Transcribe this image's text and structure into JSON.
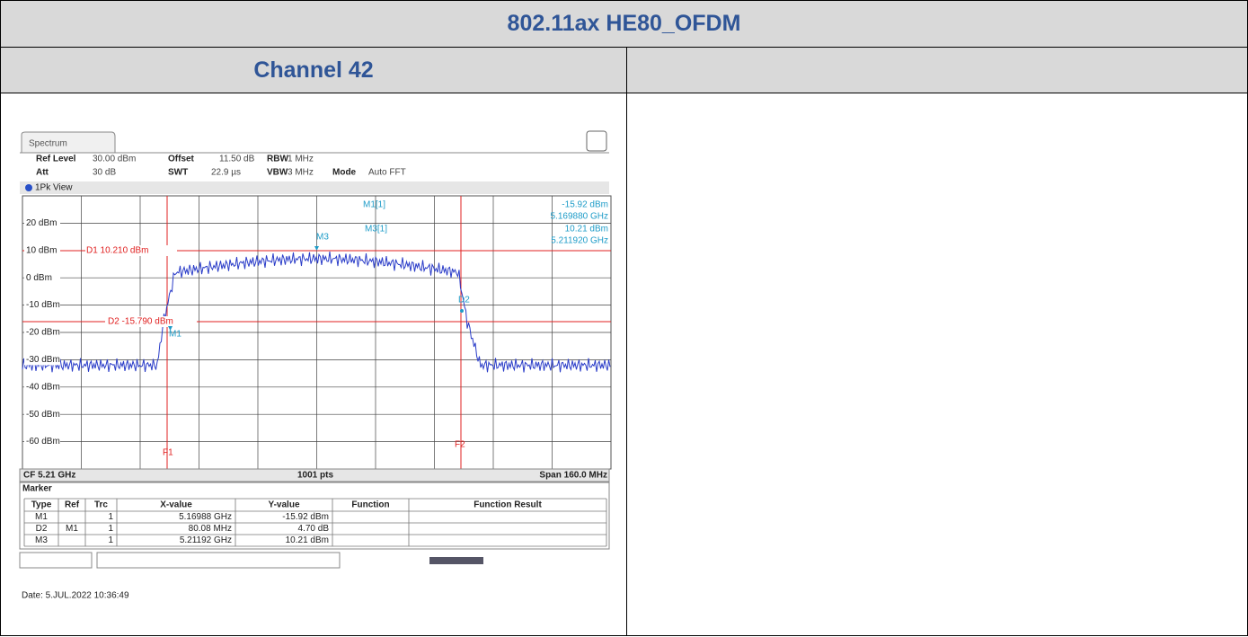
{
  "header": {
    "title": "802.11ax HE80_OFDM",
    "channel": "Channel 42"
  },
  "spectrum": {
    "tab": "Spectrum",
    "settings": [
      {
        "label": "Ref Level",
        "value": "30.00 dBm"
      },
      {
        "label": "Offset",
        "value": "11.50 dB"
      },
      {
        "label": "RBW",
        "value": "1 MHz"
      },
      {
        "label": "Att",
        "value": "30 dB"
      },
      {
        "label": "SWT",
        "value": "22.9 µs"
      },
      {
        "label": "VBW",
        "value": "3 MHz"
      },
      {
        "label": "Mode",
        "value": "Auto FFT"
      }
    ],
    "view": "1Pk View",
    "y_labels": [
      "20 dBm",
      "10 dBm",
      "0 dBm",
      "-10 dBm",
      "-20 dBm",
      "-30 dBm",
      "-40 dBm",
      "-50 dBm",
      "-60 dBm"
    ],
    "readouts": [
      {
        "label": "M1[1]",
        "level": "-15.92 dBm",
        "freq": "5.169880 GHz"
      },
      {
        "label": "M3[1]",
        "level": "10.21 dBm",
        "freq": "5.211920 GHz"
      }
    ],
    "lines": [
      "D1 10.210 dBm",
      "D2 -15.790 dBm"
    ],
    "marker_tags": [
      "M1",
      "M3",
      "D2"
    ],
    "freq_lines": [
      "F1",
      "F2"
    ],
    "footer": {
      "left": "CF 5.21 GHz",
      "center": "1001 pts",
      "right": "Span 160.0 MHz"
    },
    "marker_table": {
      "title": "Marker",
      "columns": [
        "Type",
        "Ref",
        "Trc",
        "X-value",
        "Y-value",
        "Function",
        "Function Result"
      ],
      "rows": [
        [
          "M1",
          "",
          "1",
          "5.16988 GHz",
          "-15.92 dBm",
          "",
          ""
        ],
        [
          "D2",
          "M1",
          "1",
          "80.08 MHz",
          "4.70 dB",
          "",
          ""
        ],
        [
          "M3",
          "",
          "1",
          "5.21192 GHz",
          "10.21 dBm",
          "",
          ""
        ]
      ]
    },
    "date": "Date: 5.JUL.2022 10:36:49"
  }
}
